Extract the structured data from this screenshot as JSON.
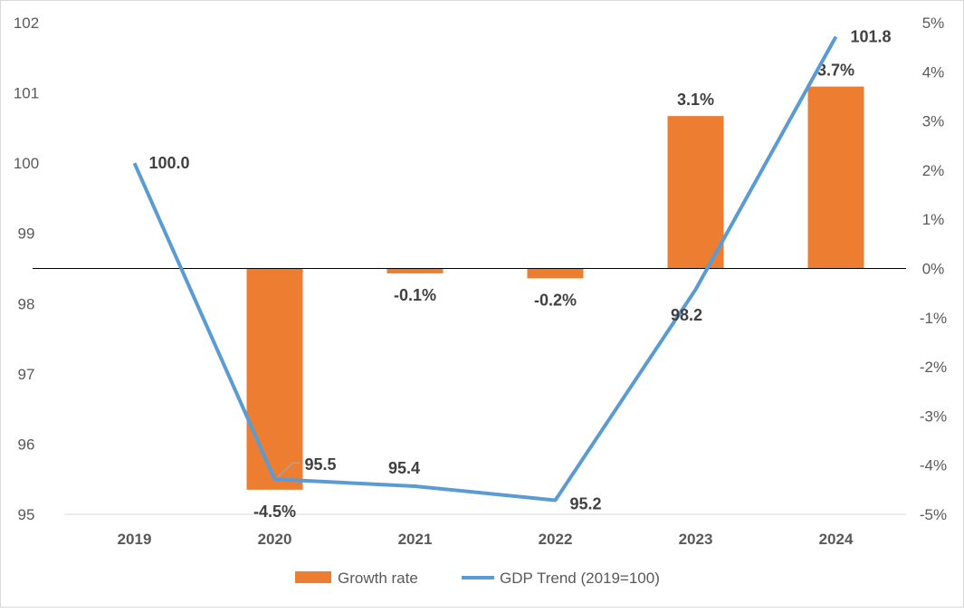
{
  "chart_data": {
    "type": "bar+line",
    "categories": [
      "2019",
      "2020",
      "2021",
      "2022",
      "2023",
      "2024"
    ],
    "series": [
      {
        "name": "Growth rate",
        "type": "bar",
        "axis": "right",
        "values": [
          null,
          -4.5,
          -0.1,
          -0.2,
          3.1,
          3.7
        ],
        "labels": [
          "",
          "-4.5%",
          "-0.1%",
          "-0.2%",
          "3.1%",
          "3.7%"
        ],
        "color": "#ED7D31"
      },
      {
        "name": "GDP Trend (2019=100)",
        "type": "line",
        "axis": "left",
        "values": [
          100.0,
          95.5,
          95.4,
          95.2,
          98.2,
          101.8
        ],
        "labels": [
          "100.0",
          "95.5",
          "95.4",
          "95.2",
          "98.2",
          "101.8"
        ],
        "color": "#5B9BD5"
      }
    ],
    "left_axis": {
      "range": [
        95,
        102
      ],
      "ticks": [
        "95",
        "96",
        "97",
        "98",
        "99",
        "100",
        "101",
        "102"
      ]
    },
    "right_axis": {
      "range": [
        -5,
        5
      ],
      "ticks": [
        "-5%",
        "-4%",
        "-3%",
        "-2%",
        "-1%",
        "0%",
        "1%",
        "2%",
        "3%",
        "4%",
        "5%"
      ]
    },
    "legend": {
      "placement": "bottom",
      "entries": [
        "Growth rate",
        "GDP Trend (2019=100)"
      ]
    },
    "grid": false
  }
}
